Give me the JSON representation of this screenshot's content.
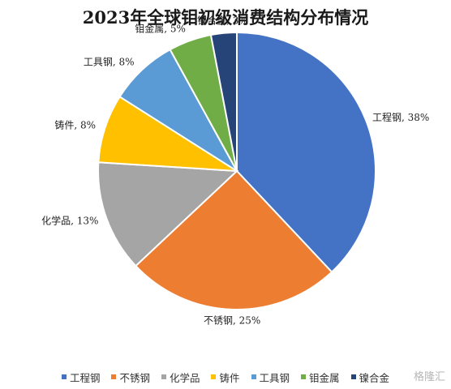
{
  "chart_data": {
    "type": "pie",
    "title": "2023年全球钼初级消费结构分布情况",
    "labels": [
      "工程钢",
      "不锈钢",
      "化学品",
      "铸件",
      "工具钢",
      "钼金属",
      "镍合金"
    ],
    "values": [
      38,
      25,
      13,
      8,
      8,
      5,
      3
    ],
    "unit": "%",
    "colors": [
      "#4472C4",
      "#ED7D31",
      "#A5A5A5",
      "#FFC000",
      "#5B9BD5",
      "#70AD47",
      "#264478"
    ],
    "legend_position": "bottom",
    "start_angle_deg": 0,
    "direction": "clockwise"
  },
  "watermark": "格隆汇"
}
